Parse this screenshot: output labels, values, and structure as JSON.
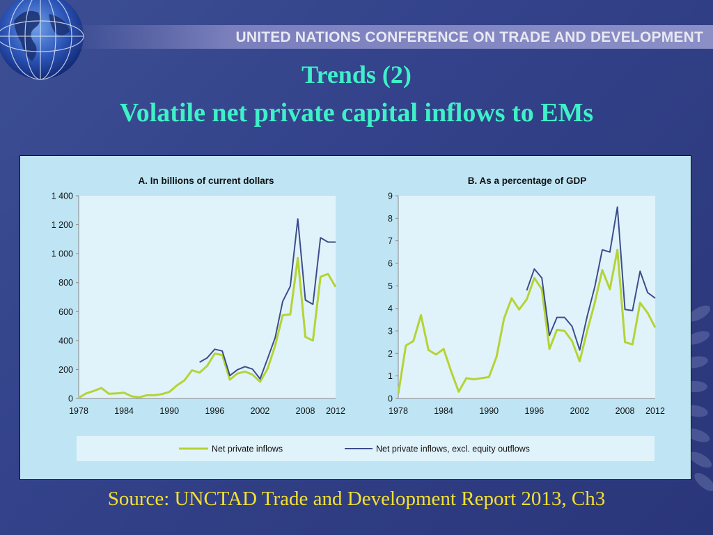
{
  "header": {
    "org_name": "UNITED NATIONS CONFERENCE ON TRADE AND DEVELOPMENT",
    "title_line1": "Trends (2)",
    "title_line2": "Volatile net private capital inflows to EMs"
  },
  "source": "Source: UNCTAD Trade and Development Report 2013, Ch3",
  "colors": {
    "net_private_inflows": "#b5d335",
    "excl_equity_outflows": "#3c4d8a",
    "title": "#3ff0c8",
    "source": "#f2e030"
  },
  "chart_data": [
    {
      "type": "line",
      "title": "A. In billions of current dollars",
      "xlim": [
        1978,
        2012
      ],
      "ylim": [
        0,
        1400
      ],
      "yticks": [
        0,
        200,
        400,
        600,
        800,
        1000,
        1200,
        1400
      ],
      "ytick_labels": [
        "0",
        "200",
        "400",
        "600",
        "800",
        "1 000",
        "1 200",
        "1 400"
      ],
      "xticks": [
        1978,
        1984,
        1990,
        1996,
        2002,
        2008,
        2012
      ],
      "xtick_labels": [
        "1978",
        "1984",
        "1990",
        "1996",
        "2002",
        "2008",
        "2012"
      ],
      "series": [
        {
          "name": "Net private inflows",
          "x": [
            1978,
            1979,
            1980,
            1981,
            1982,
            1983,
            1984,
            1985,
            1986,
            1987,
            1988,
            1989,
            1990,
            1991,
            1992,
            1993,
            1994,
            1995,
            1996,
            1997,
            1998,
            1999,
            2000,
            2001,
            2002,
            2003,
            2004,
            2005,
            2006,
            2007,
            2008,
            2009,
            2010,
            2011,
            2012
          ],
          "values": [
            5,
            35,
            52,
            72,
            32,
            35,
            40,
            15,
            8,
            22,
            22,
            30,
            45,
            90,
            125,
            195,
            178,
            225,
            310,
            300,
            130,
            172,
            185,
            165,
            115,
            205,
            365,
            575,
            580,
            970,
            425,
            400,
            840,
            860,
            770
          ]
        },
        {
          "name": "Net private inflows, excl. equity outflows",
          "x": [
            1994,
            1995,
            1996,
            1997,
            1998,
            1999,
            2000,
            2001,
            2002,
            2003,
            2004,
            2005,
            2006,
            2007,
            2008,
            2009,
            2010,
            2011,
            2012
          ],
          "values": [
            250,
            280,
            340,
            328,
            158,
            198,
            220,
            203,
            135,
            275,
            420,
            670,
            775,
            1240,
            680,
            650,
            1110,
            1080,
            1080
          ]
        }
      ]
    },
    {
      "type": "line",
      "title": "B. As a percentage of GDP",
      "xlim": [
        1978,
        2012
      ],
      "ylim": [
        0,
        9
      ],
      "yticks": [
        0,
        1,
        2,
        3,
        4,
        5,
        6,
        7,
        8,
        9
      ],
      "ytick_labels": [
        "0",
        "1",
        "2",
        "3",
        "4",
        "5",
        "6",
        "7",
        "8",
        "9"
      ],
      "xticks": [
        1978,
        1984,
        1990,
        1996,
        2002,
        2008,
        2012
      ],
      "xtick_labels": [
        "1978",
        "1984",
        "1990",
        "1996",
        "2002",
        "2008",
        "2012"
      ],
      "series": [
        {
          "name": "Net private inflows",
          "x": [
            1978,
            1979,
            1980,
            1981,
            1982,
            1983,
            1984,
            1985,
            1986,
            1987,
            1988,
            1989,
            1990,
            1991,
            1992,
            1993,
            1994,
            1995,
            1996,
            1997,
            1998,
            1999,
            2000,
            2001,
            2002,
            2003,
            2004,
            2005,
            2006,
            2007,
            2008,
            2009,
            2010,
            2011,
            2012
          ],
          "values": [
            0.2,
            2.35,
            2.55,
            3.7,
            2.15,
            1.95,
            2.2,
            1.2,
            0.3,
            0.9,
            0.85,
            0.9,
            0.95,
            1.85,
            3.55,
            4.45,
            3.95,
            4.4,
            5.35,
            4.85,
            2.2,
            3.05,
            3.0,
            2.55,
            1.65,
            3.0,
            4.25,
            5.7,
            4.85,
            6.6,
            2.5,
            2.4,
            4.25,
            3.8,
            3.15
          ]
        },
        {
          "name": "Net private inflows, excl. equity outflows",
          "x": [
            1995,
            1996,
            1997,
            1998,
            1999,
            2000,
            2001,
            2002,
            2003,
            2004,
            2005,
            2006,
            2007,
            2008,
            2009,
            2010,
            2011,
            2012
          ],
          "values": [
            4.8,
            5.75,
            5.35,
            2.8,
            3.6,
            3.6,
            3.2,
            2.15,
            3.65,
            4.95,
            6.6,
            6.5,
            8.5,
            3.95,
            3.9,
            5.65,
            4.7,
            4.45
          ]
        }
      ]
    }
  ]
}
